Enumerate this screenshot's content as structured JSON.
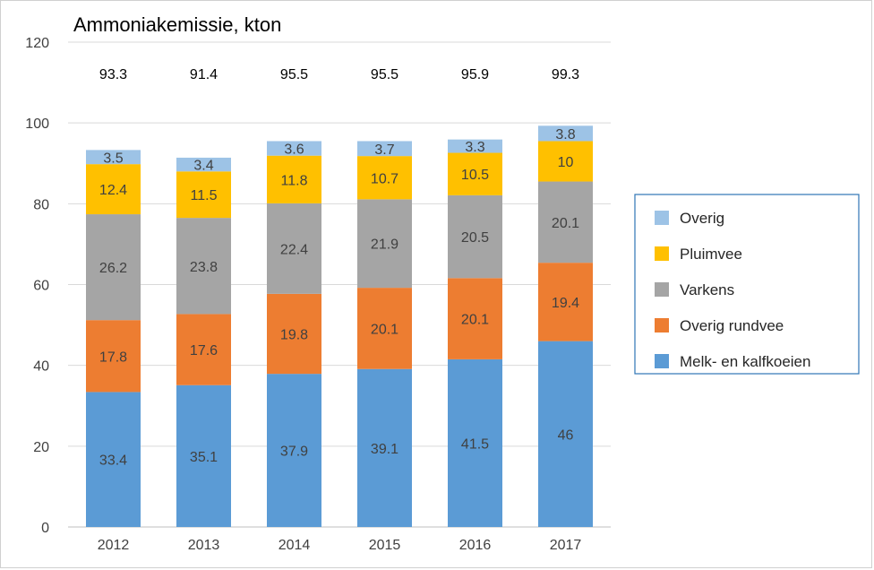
{
  "chart_data": {
    "type": "bar",
    "stacked": true,
    "title": "Ammoniakemissie, kton",
    "categories": [
      "2012",
      "2013",
      "2014",
      "2015",
      "2016",
      "2017"
    ],
    "ylim": [
      0,
      120
    ],
    "yticks": [
      0,
      20,
      40,
      60,
      80,
      100,
      120
    ],
    "grid": true,
    "legend_position": "right",
    "series": [
      {
        "name": "Melk- en kalfkoeien",
        "color": "#5B9BD5",
        "label_color": "#404040",
        "values": [
          33.4,
          35.1,
          37.9,
          39.1,
          41.5,
          46
        ]
      },
      {
        "name": "Overig rundvee",
        "color": "#ED7D31",
        "label_color": "#404040",
        "values": [
          17.8,
          17.6,
          19.8,
          20.1,
          20.1,
          19.4
        ]
      },
      {
        "name": "Varkens",
        "color": "#A5A5A5",
        "label_color": "#404040",
        "values": [
          26.2,
          23.8,
          22.4,
          21.9,
          20.5,
          20.1
        ]
      },
      {
        "name": "Pluimvee",
        "color": "#FFC000",
        "label_color": "#404040",
        "values": [
          12.4,
          11.5,
          11.8,
          10.7,
          10.5,
          10
        ]
      },
      {
        "name": "Overig",
        "color": "#9DC3E6",
        "label_color": "#404040",
        "values": [
          3.5,
          3.4,
          3.6,
          3.7,
          3.3,
          3.8
        ]
      }
    ],
    "totals": [
      "93.3",
      "91.4",
      "95.5",
      "95.5",
      "95.9",
      "99.3"
    ]
  }
}
